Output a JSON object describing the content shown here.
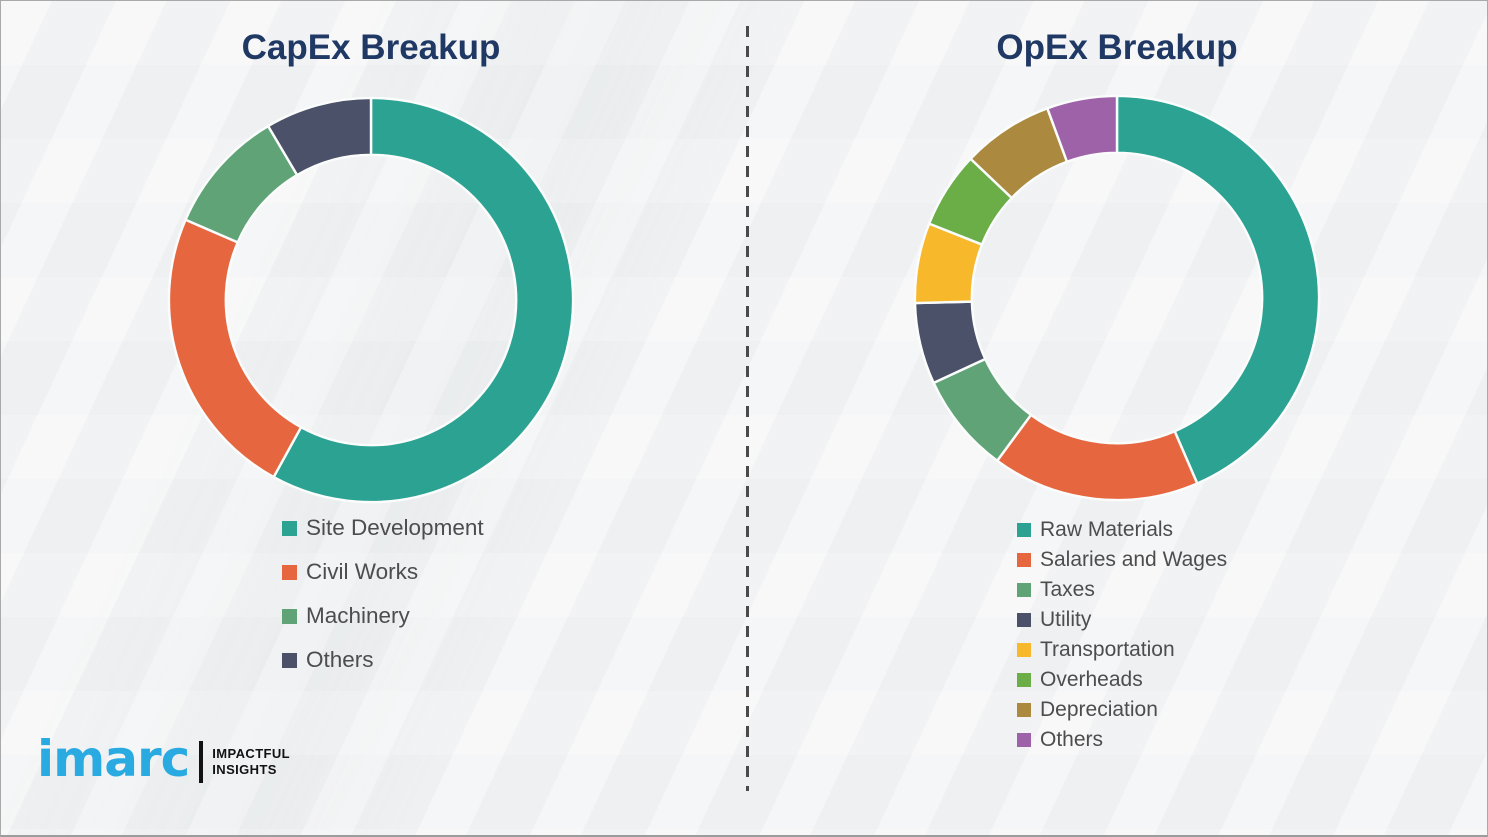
{
  "page": {
    "background_color": "#f2f3f4",
    "title_color": "#1F3864",
    "legend_text_color": "#4d4d4d",
    "divider_color": "#4a4a4a"
  },
  "branding": {
    "logo_text": "imarc",
    "logo_color": "#29ABE2",
    "tagline_line1": "IMPACTFUL",
    "tagline_line2": "INSIGHTS"
  },
  "chart_data": [
    {
      "type": "pie",
      "variant": "donut",
      "title": "CapEx Breakup",
      "labels": [
        "Site Development",
        "Civil Works",
        "Machinery",
        "Others"
      ],
      "values": [
        58,
        23.5,
        10,
        8.5
      ],
      "colors": [
        "#2BA292",
        "#E6663F",
        "#5FA377",
        "#4A5168"
      ],
      "start_angle": 0,
      "direction": "clockwise",
      "legend_position": "below-left",
      "data_labels": false
    },
    {
      "type": "pie",
      "variant": "donut",
      "title": "OpEx Breakup",
      "labels": [
        "Raw Materials",
        "Salaries and Wages",
        "Taxes",
        "Utility",
        "Transportation",
        "Overheads",
        "Depreciation",
        "Others"
      ],
      "values": [
        43.5,
        16.6,
        8,
        6.5,
        6.4,
        6.1,
        7.3,
        5.6
      ],
      "colors": [
        "#2BA292",
        "#E6663F",
        "#5FA377",
        "#4A5168",
        "#F7B82C",
        "#6BAE48",
        "#AB8A3F",
        "#9D62A8"
      ],
      "start_angle": 0,
      "direction": "clockwise",
      "legend_position": "below-left",
      "data_labels": false
    }
  ]
}
